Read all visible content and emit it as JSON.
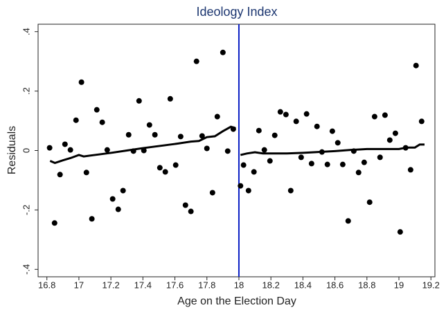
{
  "chart_data": {
    "type": "scatter",
    "title": "Ideology Index",
    "x_label": "Age on the Election Day",
    "y_label": "Residuals",
    "xlim": [
      16.745,
      19.225
    ],
    "ylim": [
      -0.425,
      0.425
    ],
    "xticks": [
      16.8,
      17,
      17.2,
      17.4,
      17.6,
      17.8,
      18,
      18.2,
      18.4,
      18.6,
      18.8,
      19,
      19.2
    ],
    "yticks": [
      {
        "value": -0.4,
        "label": "-.4"
      },
      {
        "value": -0.2,
        "label": "-.2"
      },
      0,
      {
        "value": 0.2,
        "label": ".2"
      },
      {
        "value": 0.4,
        "label": ".4"
      }
    ],
    "vline": 18,
    "vline_color": "#0a1fc4",
    "series": [
      {
        "type": "scatter",
        "color": "#000000",
        "x": [
          16.817,
          16.848,
          16.882,
          16.913,
          16.947,
          16.982,
          17.016,
          17.047,
          17.081,
          17.112,
          17.146,
          17.177,
          17.211,
          17.246,
          17.276,
          17.311,
          17.341,
          17.376,
          17.406,
          17.441,
          17.475,
          17.506,
          17.54,
          17.571,
          17.605,
          17.636,
          17.666,
          17.7,
          17.735,
          17.77,
          17.8,
          17.835,
          17.865,
          17.9,
          17.93,
          17.965,
          18.01,
          18.029,
          18.06,
          18.094,
          18.125,
          18.159,
          18.194,
          18.224,
          18.259,
          18.294,
          18.324,
          18.358,
          18.389,
          18.423,
          18.454,
          18.488,
          18.519,
          18.553,
          18.584,
          18.618,
          18.649,
          18.683,
          18.718,
          18.748,
          18.783,
          18.817,
          18.848,
          18.882,
          18.913,
          18.943,
          18.978,
          19.008,
          19.042,
          19.073,
          19.107,
          19.142
        ],
        "values": [
          0.009,
          -0.244,
          -0.081,
          0.021,
          0.002,
          0.102,
          0.23,
          -0.074,
          -0.23,
          0.137,
          0.095,
          0.002,
          -0.163,
          -0.198,
          -0.135,
          0.053,
          -0.002,
          0.167,
          0,
          0.086,
          0.053,
          -0.058,
          -0.072,
          0.174,
          -0.049,
          0.047,
          -0.184,
          -0.205,
          0.3,
          0.049,
          0.007,
          -0.142,
          0.114,
          0.33,
          -0.002,
          0.072,
          -0.119,
          -0.049,
          -0.135,
          -0.072,
          0.067,
          0.002,
          -0.035,
          0.051,
          0.13,
          0.121,
          -0.135,
          0.098,
          -0.023,
          0.123,
          -0.044,
          0.081,
          -0.005,
          -0.047,
          0.065,
          0.026,
          -0.047,
          -0.237,
          -0.002,
          -0.074,
          -0.04,
          -0.174,
          0.114,
          -0.023,
          0.119,
          0.035,
          0.058,
          -0.274,
          0.009,
          -0.065,
          0.286,
          0.098
        ]
      },
      {
        "type": "line",
        "color": "#000000",
        "x": [
          16.82,
          16.85,
          16.9,
          16.95,
          17.0,
          17.03,
          17.1,
          17.2,
          17.3,
          17.4,
          17.5,
          17.6,
          17.7,
          17.75,
          17.8,
          17.85,
          17.9,
          17.95,
          17.98
        ],
        "values": [
          -0.035,
          -0.042,
          -0.033,
          -0.025,
          -0.015,
          -0.02,
          -0.015,
          -0.008,
          0.0,
          0.008,
          0.015,
          0.022,
          0.03,
          0.032,
          0.045,
          0.048,
          0.065,
          0.08,
          0.075
        ]
      },
      {
        "type": "line",
        "color": "#000000",
        "x": [
          18.01,
          18.05,
          18.1,
          18.15,
          18.2,
          18.3,
          18.4,
          18.5,
          18.6,
          18.7,
          18.8,
          18.9,
          19.0,
          19.05,
          19.1,
          19.13,
          19.16
        ],
        "values": [
          -0.015,
          -0.01,
          -0.006,
          -0.01,
          -0.01,
          -0.01,
          -0.008,
          -0.005,
          -0.002,
          0.002,
          0.005,
          0.005,
          0.005,
          0.01,
          0.01,
          0.02,
          0.02
        ]
      }
    ]
  }
}
